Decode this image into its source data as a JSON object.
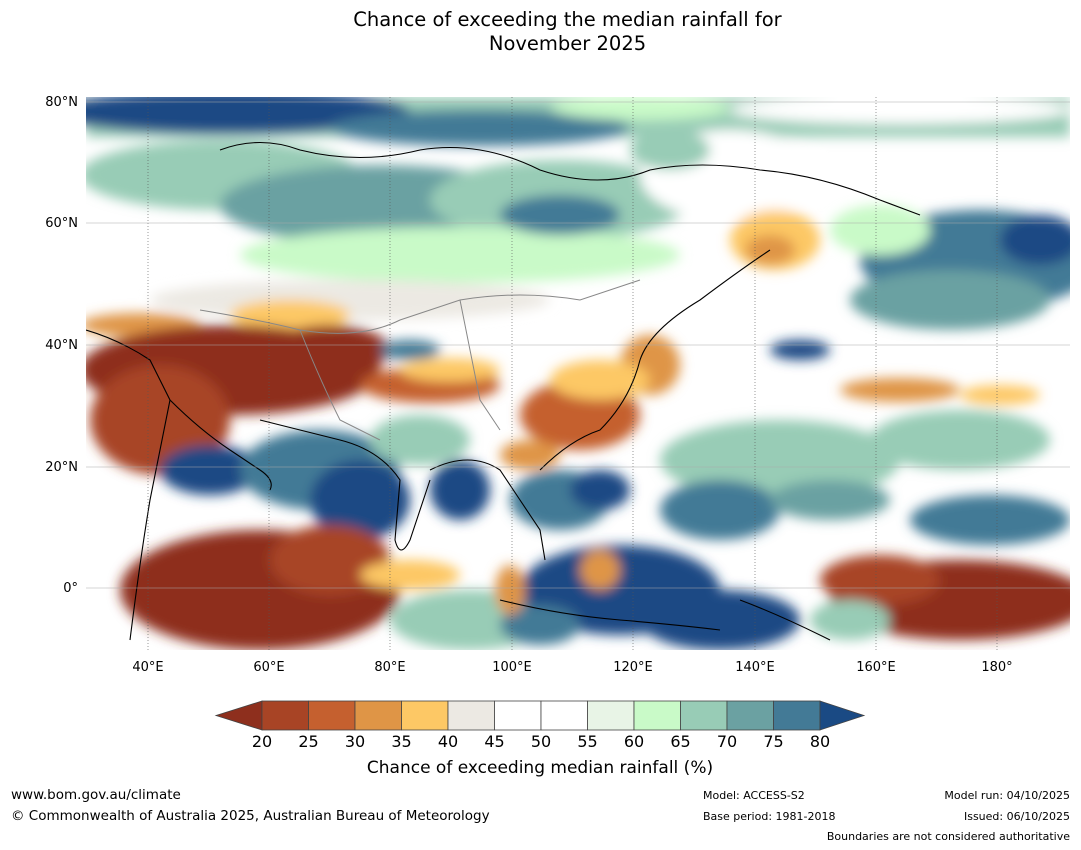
{
  "title_line1": "Chance of exceeding the median rainfall for",
  "title_line2": "November 2025",
  "map": {
    "lat_labels": [
      "80°N",
      "60°N",
      "40°N",
      "20°N",
      "0°"
    ],
    "lon_labels": [
      "40°E",
      "60°E",
      "80°E",
      "100°E",
      "120°E",
      "140°E",
      "160°E",
      "180°"
    ],
    "region": {
      "lon_range": [
        30,
        192
      ],
      "lat_range": [
        -10,
        80
      ]
    }
  },
  "colorbar": {
    "label": "Chance of exceeding median rainfall (%)",
    "ticks": [
      "20",
      "25",
      "30",
      "35",
      "40",
      "45",
      "50",
      "55",
      "60",
      "65",
      "70",
      "75",
      "80"
    ],
    "colors": [
      "#8e2f1d",
      "#a84425",
      "#c5602f",
      "#df9546",
      "#fdc865",
      "#ece9e3",
      "#ffffff",
      "#ffffff",
      "#e8f4e6",
      "#c9fac8",
      "#98ccb6",
      "#6ba1a2",
      "#437a96",
      "#1a4a84"
    ]
  },
  "footer": {
    "website": "www.bom.gov.au/climate",
    "copyright": "© Commonwealth of Australia 2025, Australian Bureau of Meteorology",
    "model": "Model: ACCESS-S2",
    "base_period": "Base period: 1981-2018",
    "model_run": "Model run: 04/10/2025",
    "issued": "Issued: 06/10/2025",
    "disclaimer": "Boundaries are not considered authoritative"
  }
}
